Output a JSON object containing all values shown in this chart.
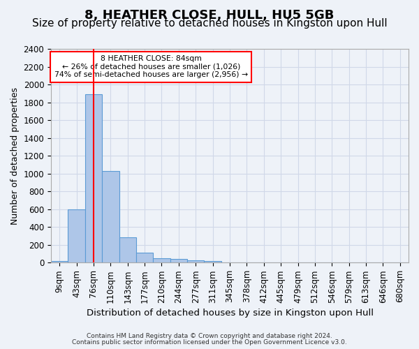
{
  "title": "8, HEATHER CLOSE, HULL, HU5 5GB",
  "subtitle": "Size of property relative to detached houses in Kingston upon Hull",
  "xlabel": "Distribution of detached houses by size in Kingston upon Hull",
  "ylabel": "Number of detached properties",
  "footnote1": "Contains HM Land Registry data © Crown copyright and database right 2024.",
  "footnote2": "Contains public sector information licensed under the Open Government Licence v3.0.",
  "bin_labels": [
    "9sqm",
    "43sqm",
    "76sqm",
    "110sqm",
    "143sqm",
    "177sqm",
    "210sqm",
    "244sqm",
    "277sqm",
    "311sqm",
    "345sqm",
    "378sqm",
    "412sqm",
    "445sqm",
    "479sqm",
    "512sqm",
    "546sqm",
    "579sqm",
    "613sqm",
    "646sqm",
    "680sqm"
  ],
  "bar_values": [
    20,
    600,
    1890,
    1030,
    285,
    115,
    48,
    42,
    27,
    20,
    0,
    0,
    0,
    0,
    0,
    0,
    0,
    0,
    0,
    0,
    0
  ],
  "bar_color": "#aec6e8",
  "bar_edge_color": "#5b9bd5",
  "vline_x": 2,
  "vline_color": "red",
  "annotation_text": "8 HEATHER CLOSE: 84sqm\n← 26% of detached houses are smaller (1,026)\n74% of semi-detached houses are larger (2,956) →",
  "annotation_box_color": "white",
  "annotation_border_color": "red",
  "ylim": [
    0,
    2400
  ],
  "yticks": [
    0,
    200,
    400,
    600,
    800,
    1000,
    1200,
    1400,
    1600,
    1800,
    2000,
    2200,
    2400
  ],
  "grid_color": "#d0d8e8",
  "background_color": "#eef2f8",
  "title_fontsize": 13,
  "subtitle_fontsize": 11,
  "axis_fontsize": 9.5,
  "tick_fontsize": 8.5,
  "footnote_fontsize": 6.5,
  "ylabel_fontsize": 9.0
}
